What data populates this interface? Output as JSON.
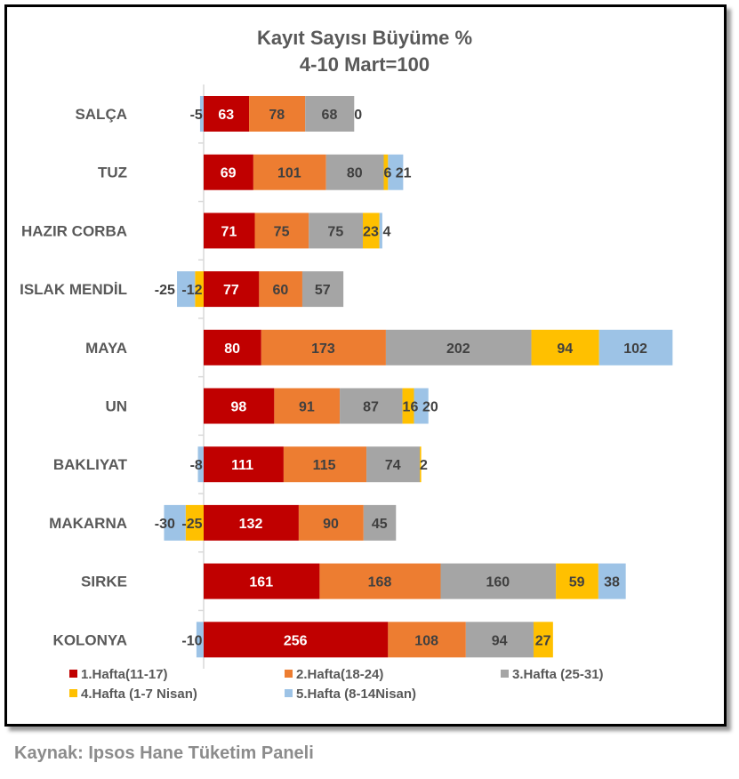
{
  "chart_data": {
    "type": "bar",
    "orientation": "horizontal",
    "stacked": true,
    "title": "Kayıt Sayısı Büyüme %",
    "subtitle": "4-10 Mart=100",
    "categories": [
      "SALÇA",
      "TUZ",
      "HAZIR CORBA",
      "ISLAK MENDİL",
      "MAYA",
      "UN",
      "BAKLIYAT",
      "MAKARNA",
      "SIRKE",
      "KOLONYA"
    ],
    "series": [
      {
        "name": "1.Hafta(11-17)",
        "color": "#c00000",
        "values": [
          63,
          69,
          71,
          77,
          80,
          98,
          111,
          132,
          161,
          256
        ]
      },
      {
        "name": "2.Hafta(18-24)",
        "color": "#ed7d31",
        "values": [
          78,
          101,
          75,
          60,
          173,
          91,
          115,
          90,
          168,
          108
        ]
      },
      {
        "name": "3.Hafta (25-31)",
        "color": "#a5a5a5",
        "values": [
          68,
          80,
          75,
          57,
          202,
          87,
          74,
          45,
          160,
          94
        ]
      },
      {
        "name": "4.Hafta (1-7 Nisan)",
        "color": "#ffc000",
        "values": [
          0,
          6,
          23,
          -12,
          94,
          16,
          2,
          -25,
          59,
          27
        ]
      },
      {
        "name": "5.Hafta (8-14Nisan)",
        "color": "#9dc3e6",
        "values": [
          -5,
          21,
          4,
          -25,
          102,
          20,
          -8,
          -30,
          38,
          -10
        ]
      }
    ],
    "legend_position": "bottom",
    "grid": false
  },
  "source": "Kaynak: Ipsos Hane Tüketim Paneli"
}
